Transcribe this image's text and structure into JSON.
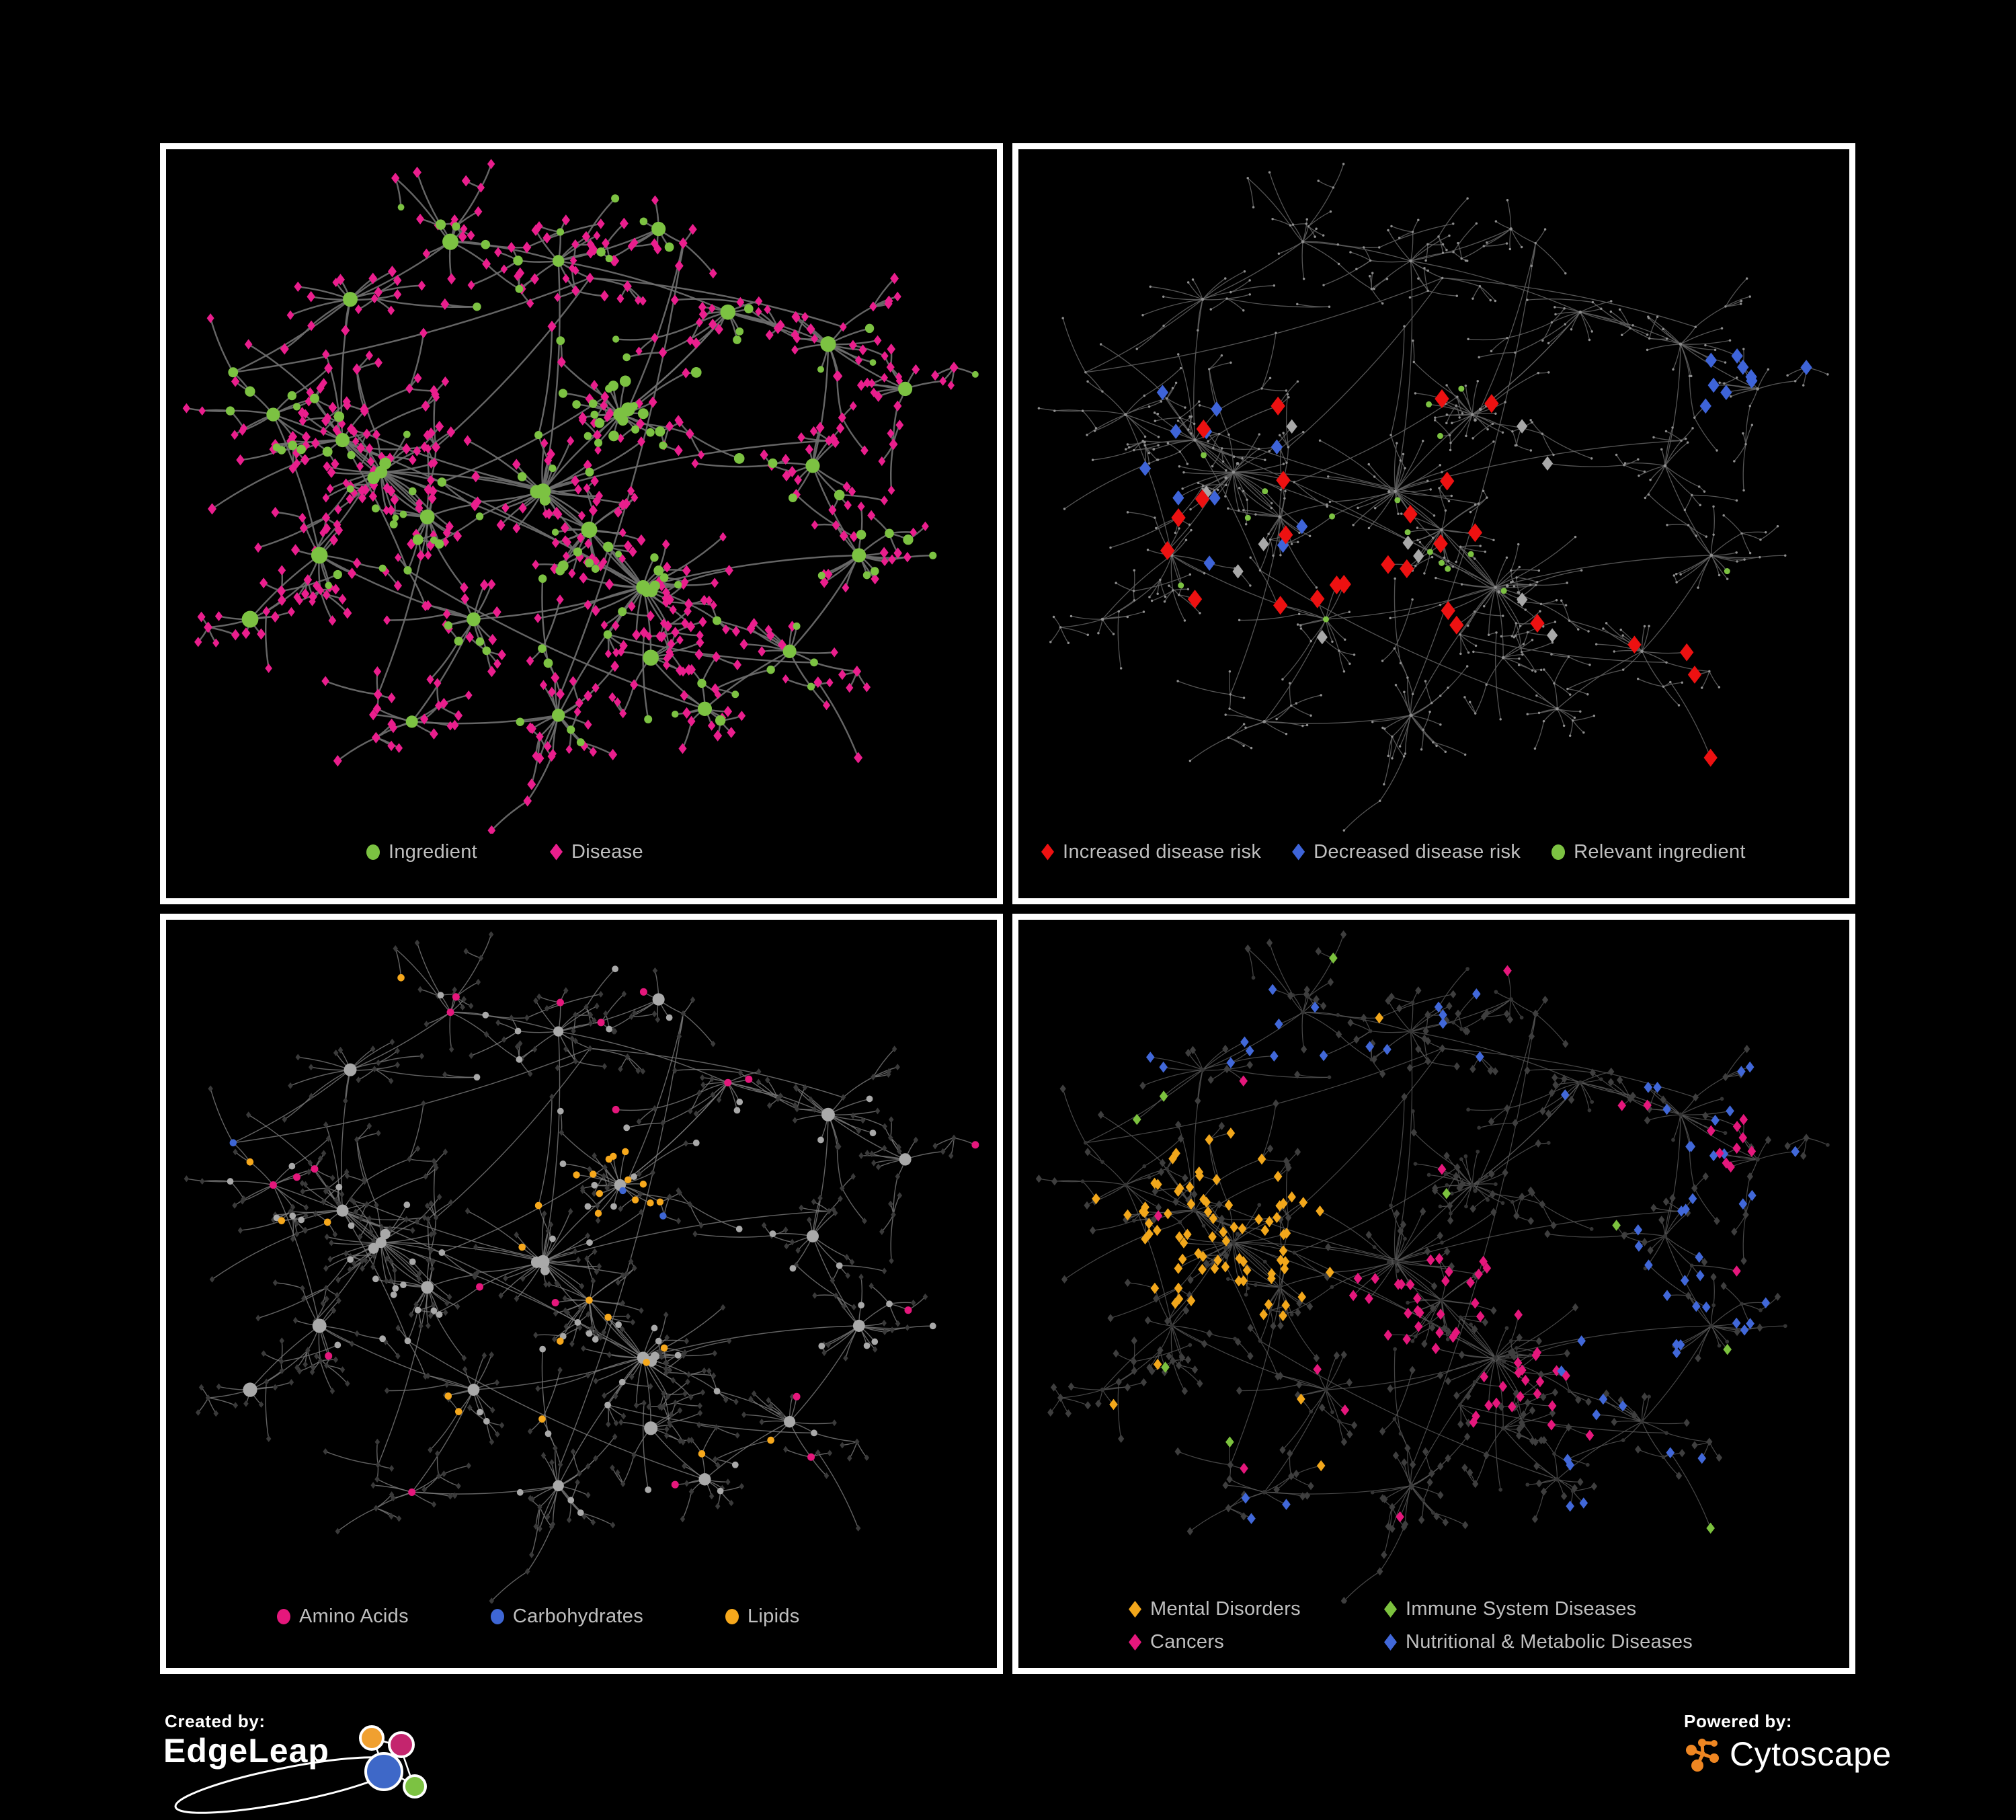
{
  "page": {
    "background": "#000000",
    "panel_border": "#ffffff",
    "legend_text_color": "#bfbfbf"
  },
  "network": {
    "seed": 1337
  },
  "panels": [
    {
      "id": "ingredient-disease",
      "legend": [
        {
          "label": "Ingredient",
          "shape": "circle",
          "color": "#7cc242"
        },
        {
          "label": "Disease",
          "shape": "diamond",
          "color": "#ea1e8d"
        }
      ],
      "net": {
        "edge": "#6e6e6e",
        "edge_width": 2.4,
        "edge_opacity": 0.92,
        "circle": "#7cc242",
        "diamond": "#ea1e8d"
      }
    },
    {
      "id": "disease-risk",
      "legend": [
        {
          "label": "Increased disease risk",
          "shape": "diamond",
          "color": "#ed1111"
        },
        {
          "label": "Decreased disease risk",
          "shape": "diamond",
          "color": "#3e64d9"
        },
        {
          "label": "Relevant ingredient",
          "shape": "circle",
          "color": "#7cc242"
        }
      ],
      "net": {
        "edge": "#616161",
        "edge_width": 1.3,
        "edge_opacity": 0.85,
        "base": "#8f8f8f",
        "red": "#ed1111",
        "blue": "#3e64d9",
        "gray": "#a8a8a8",
        "green": "#7cc242"
      }
    },
    {
      "id": "ingredient-classes",
      "legend": [
        {
          "label": "Amino Acids",
          "shape": "circle",
          "color": "#e5177c"
        },
        {
          "label": "Carbohydrates",
          "shape": "circle",
          "color": "#3e66d4"
        },
        {
          "label": "Lipids",
          "shape": "circle",
          "color": "#f6a81c"
        }
      ],
      "net": {
        "edge": "#7b7b7b",
        "edge_width": 1.4,
        "edge_opacity": 0.8,
        "circle_base": "#a9a9a9",
        "diamond_base": "#3a3a3a",
        "pink": "#e5177c",
        "blue": "#3e66d4",
        "yellow": "#f6a81c"
      }
    },
    {
      "id": "disease-classes",
      "legend": [
        {
          "label": "Mental Disorders",
          "shape": "diamond",
          "color": "#f2a71b"
        },
        {
          "label": "Immune System Diseases",
          "shape": "diamond",
          "color": "#7cc23e"
        },
        {
          "label": "Cancers",
          "shape": "diamond",
          "color": "#e5177c"
        },
        {
          "label": "Nutritional & Metabolic Diseases",
          "shape": "diamond",
          "color": "#4168d9"
        }
      ],
      "net": {
        "edge": "#575757",
        "edge_width": 1.2,
        "edge_opacity": 0.8,
        "circle_base": "#353535",
        "diamond_base": "#3e3e3e",
        "orange": "#f2a71b",
        "green": "#7cc23e",
        "pink": "#e5177c",
        "blue": "#4168d9"
      }
    }
  ],
  "footer": {
    "created_by": "Created by:",
    "brand_left": "EdgeLeap",
    "powered_by": "Powered by:",
    "brand_right": "Cytoscape",
    "edgeleap_colors": {
      "orange": "#f0a030",
      "pink": "#c4256e",
      "blue": "#3e68c8",
      "green": "#7cc242"
    },
    "cytoscape_color": "#ee8622"
  }
}
